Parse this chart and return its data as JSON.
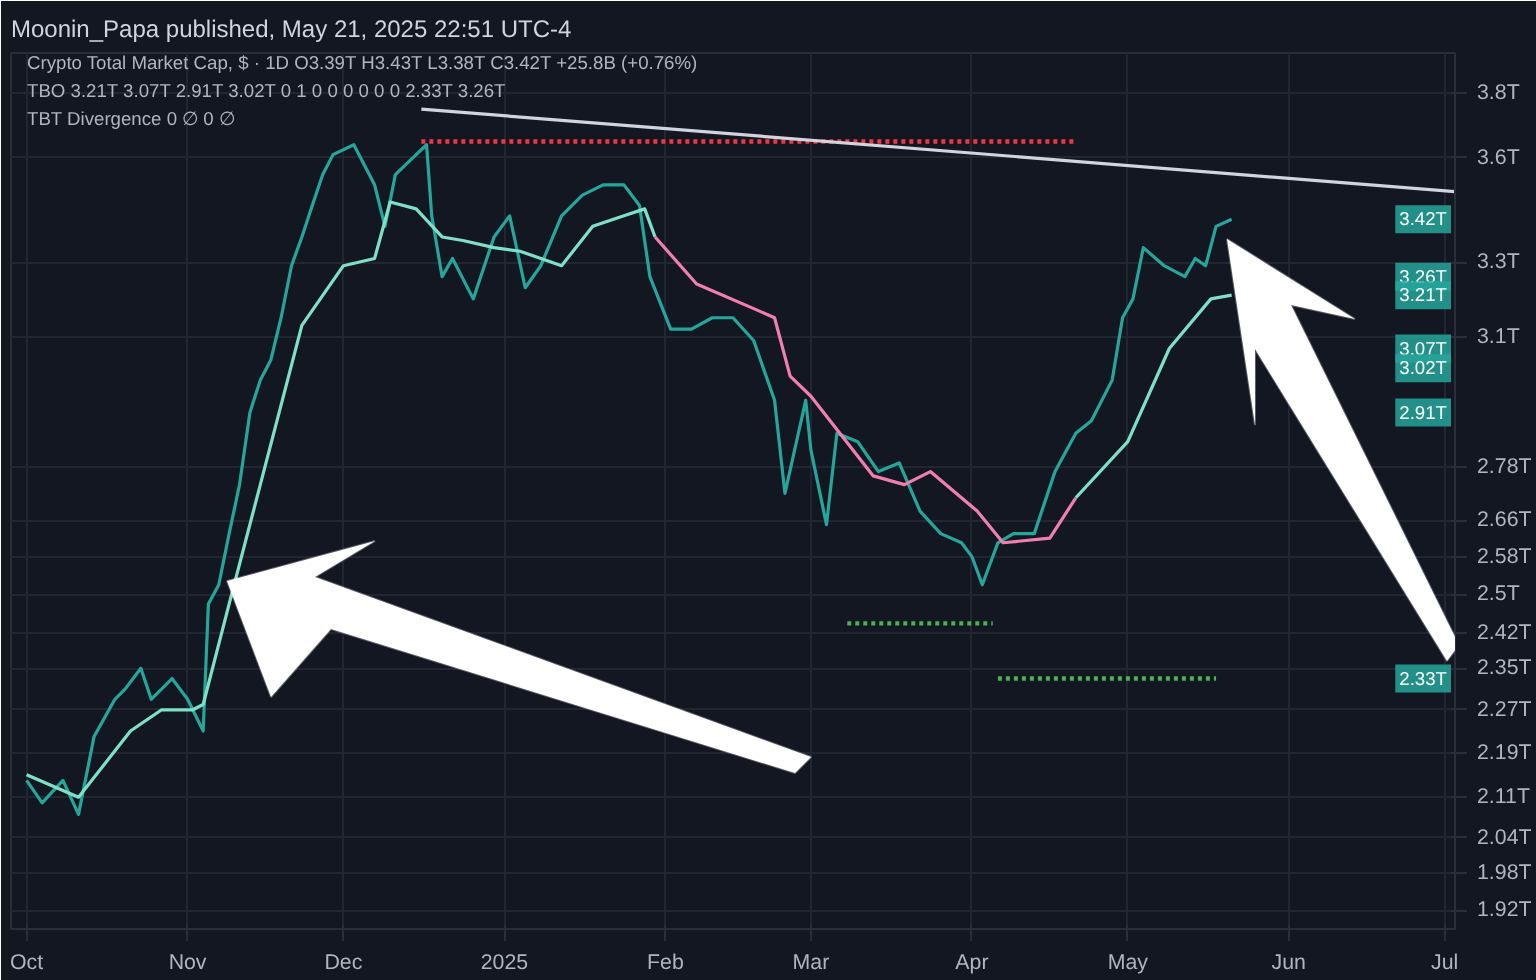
{
  "chart_data": {
    "type": "line",
    "title": "Moonin_Papa published, May 21, 2025 22:51 UTC-4",
    "annotations": [
      "Crypto Total Market Cap, $ · 1D  O3.39T H3.43T L3.38T C3.42T +25.8B (+0.76%)",
      "TBO 3.21T 3.07T 2.91T 3.02T 0 1 0 0 0 0 0 0 2.33T 3.26T",
      "TBT Divergence 0 ∅ 0 ∅",
      {
        "text": "3.42T",
        "y": 3.42
      },
      {
        "text": "3.26T",
        "y": 3.26
      },
      {
        "text": "3.21T",
        "y": 3.21
      },
      {
        "text": "3.07T",
        "y": 3.07
      },
      {
        "text": "3.02T",
        "y": 3.02
      },
      {
        "text": "2.91T",
        "y": 2.91
      },
      {
        "text": "2.33T",
        "y": 2.33
      }
    ],
    "log": "y",
    "grid": true,
    "line_style": "solid",
    "marker": "none",
    "xlim": [
      "2024-09-28",
      "2025-07-03"
    ],
    "xticks": [
      {
        "value": "2024-10-01",
        "label": "Oct"
      },
      {
        "value": "2024-11-01",
        "label": "Nov"
      },
      {
        "value": "2024-12-01",
        "label": "Dec"
      },
      {
        "value": "2025-01-01",
        "label": "2025"
      },
      {
        "value": "2025-02-01",
        "label": "Feb"
      },
      {
        "value": "2025-03-01",
        "label": "Mar"
      },
      {
        "value": "2025-04-01",
        "label": "Apr"
      },
      {
        "value": "2025-05-01",
        "label": "May"
      },
      {
        "value": "2025-06-01",
        "label": "Jun"
      },
      {
        "value": "2025-07-01",
        "label": "Jul"
      }
    ],
    "ylim": [
      1.89,
      3.93
    ],
    "yticks": [
      {
        "value": 1.92,
        "label": "1.92T"
      },
      {
        "value": 1.98,
        "label": "1.98T"
      },
      {
        "value": 2.04,
        "label": "2.04T"
      },
      {
        "value": 2.11,
        "label": "2.11T"
      },
      {
        "value": 2.19,
        "label": "2.19T"
      },
      {
        "value": 2.27,
        "label": "2.27T"
      },
      {
        "value": 2.35,
        "label": "2.35T"
      },
      {
        "value": 2.42,
        "label": "2.42T"
      },
      {
        "value": 2.5,
        "label": "2.5T"
      },
      {
        "value": 2.58,
        "label": "2.58T"
      },
      {
        "value": 2.66,
        "label": "2.66T"
      },
      {
        "value": 2.78,
        "label": "2.78T"
      },
      {
        "value": 3.1,
        "label": "3.1T"
      },
      {
        "value": 3.3,
        "label": "3.3T"
      },
      {
        "value": 3.6,
        "label": "3.6T"
      },
      {
        "value": 3.8,
        "label": "3.8T"
      }
    ],
    "series": [
      {
        "color": "#26a69a",
        "x": [
          "2024-10-01",
          "2024-10-04",
          "2024-10-08",
          "2024-10-11",
          "2024-10-14",
          "2024-10-18",
          "2024-10-20",
          "2024-10-23",
          "2024-10-25",
          "2024-10-29",
          "2024-11-01",
          "2024-11-04",
          "2024-11-05",
          "2024-11-07",
          "2024-11-09",
          "2024-11-11",
          "2024-11-13",
          "2024-11-15",
          "2024-11-17",
          "2024-11-19",
          "2024-11-21",
          "2024-11-23",
          "2024-11-25",
          "2024-11-27",
          "2024-11-29",
          "2024-12-03",
          "2024-12-07",
          "2024-12-09",
          "2024-12-11",
          "2024-12-15",
          "2024-12-17",
          "2024-12-18",
          "2024-12-20",
          "2024-12-22",
          "2024-12-26",
          "2024-12-30",
          "2025-01-02",
          "2025-01-05",
          "2025-01-08",
          "2025-01-12",
          "2025-01-16",
          "2025-01-20",
          "2025-01-24",
          "2025-01-27",
          "2025-01-29",
          "2025-02-02",
          "2025-02-06",
          "2025-02-10",
          "2025-02-14",
          "2025-02-18",
          "2025-02-22",
          "2025-02-24",
          "2025-02-28",
          "2025-03-01",
          "2025-03-04",
          "2025-03-06",
          "2025-03-10",
          "2025-03-14",
          "2025-03-18",
          "2025-03-22",
          "2025-03-26",
          "2025-03-30",
          "2025-04-01",
          "2025-04-03",
          "2025-04-06",
          "2025-04-09",
          "2025-04-13",
          "2025-04-17",
          "2025-04-21",
          "2025-04-24",
          "2025-04-28",
          "2025-04-30",
          "2025-05-02",
          "2025-05-04",
          "2025-05-08",
          "2025-05-12",
          "2025-05-14",
          "2025-05-16",
          "2025-05-18",
          "2025-05-21"
        ],
        "values": [
          2.14,
          2.1,
          2.14,
          2.08,
          2.22,
          2.29,
          2.31,
          2.35,
          2.29,
          2.33,
          2.29,
          2.23,
          2.48,
          2.52,
          2.63,
          2.74,
          2.91,
          2.99,
          3.04,
          3.15,
          3.29,
          3.37,
          3.46,
          3.55,
          3.61,
          3.64,
          3.52,
          3.4,
          3.55,
          3.61,
          3.64,
          3.43,
          3.26,
          3.31,
          3.2,
          3.37,
          3.43,
          3.23,
          3.29,
          3.43,
          3.49,
          3.52,
          3.52,
          3.46,
          3.26,
          3.12,
          3.12,
          3.15,
          3.15,
          3.09,
          2.94,
          2.72,
          2.94,
          2.82,
          2.65,
          2.86,
          2.84,
          2.77,
          2.79,
          2.68,
          2.63,
          2.61,
          2.58,
          2.52,
          2.61,
          2.63,
          2.63,
          2.77,
          2.86,
          2.89,
          2.99,
          3.15,
          3.2,
          3.34,
          3.29,
          3.26,
          3.31,
          3.29,
          3.4,
          3.42
        ]
      },
      {
        "color": "#7fe0c8",
        "x": [
          "2024-10-01",
          "2024-10-11",
          "2024-10-21",
          "2024-10-27",
          "2024-11-02",
          "2024-11-04",
          "2024-11-09",
          "2024-11-15",
          "2024-11-23",
          "2024-12-01",
          "2024-12-07",
          "2024-12-10",
          "2024-12-15",
          "2024-12-20",
          "2024-12-24",
          "2024-12-30",
          "2025-01-04",
          "2025-01-12",
          "2025-01-18",
          "2025-01-24",
          "2025-01-28",
          "2025-01-30"
        ],
        "values": [
          2.15,
          2.11,
          2.23,
          2.27,
          2.27,
          2.28,
          2.48,
          2.74,
          3.13,
          3.29,
          3.31,
          3.47,
          3.45,
          3.37,
          3.36,
          3.34,
          3.33,
          3.29,
          3.4,
          3.43,
          3.45,
          3.37
        ]
      },
      {
        "color": "#f07fb0",
        "x": [
          "2025-01-30",
          "2025-02-07",
          "2025-02-17",
          "2025-02-22",
          "2025-02-25",
          "2025-03-01",
          "2025-03-13",
          "2025-03-19",
          "2025-03-24",
          "2025-04-02",
          "2025-04-07",
          "2025-04-16",
          "2025-04-21"
        ],
        "values": [
          3.37,
          3.24,
          3.18,
          3.15,
          3.0,
          2.95,
          2.76,
          2.74,
          2.77,
          2.68,
          2.61,
          2.62,
          2.71
        ]
      },
      {
        "color": "#7fe0c8",
        "x": [
          "2025-04-21",
          "2025-05-01",
          "2025-05-09",
          "2025-05-17",
          "2025-05-21"
        ],
        "values": [
          2.71,
          2.84,
          3.07,
          3.2,
          3.21
        ]
      },
      {
        "color": "#f23645",
        "line_style": "dotted",
        "x": [
          "2024-12-16",
          "2025-04-21"
        ],
        "values": [
          3.65,
          3.65
        ]
      },
      {
        "color": "#4caf50",
        "line_style": "dotted",
        "x": [
          "2025-03-08",
          "2025-04-05"
        ],
        "values": [
          2.44,
          2.44
        ]
      },
      {
        "color": "#4caf50",
        "line_style": "dotted",
        "x": [
          "2025-04-06",
          "2025-05-18"
        ],
        "values": [
          2.33,
          2.33
        ]
      },
      {
        "color": "#d1d4dc",
        "x": [
          "2024-12-16",
          "2025-07-03"
        ],
        "values": [
          3.75,
          3.5
        ]
      }
    ]
  }
}
